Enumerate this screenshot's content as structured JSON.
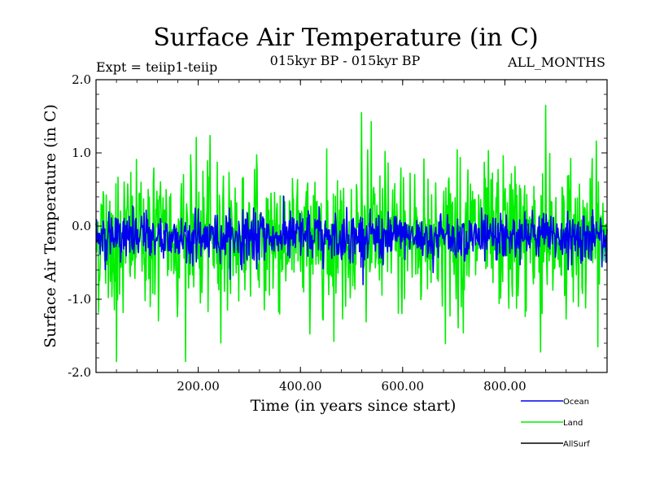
{
  "chart_data": {
    "type": "line",
    "title": "Surface Air Temperature (in C)",
    "subtitle": "015kyr BP - 015kyr BP",
    "top_left_label": "Expt = teiip1-teiip",
    "top_right_label": "ALL_MONTHS",
    "xlabel": "Time (in years since start)",
    "ylabel": "Surface Air Temperature (in C)",
    "xlim": [
      0,
      1000
    ],
    "ylim": [
      -2.0,
      2.0
    ],
    "x_ticks": [
      200,
      400,
      600,
      800
    ],
    "x_tick_labels": [
      "200.00",
      "400.00",
      "600.00",
      "800.00"
    ],
    "y_ticks": [
      2.0,
      1.0,
      0.0,
      -1.0,
      -2.0
    ],
    "y_tick_labels": [
      "2.0",
      "1.0",
      "0.0",
      "-1.0",
      "-2.0"
    ],
    "grid": false,
    "legend_position": "bottom-right",
    "series": [
      {
        "name": "Land",
        "color": "#00ee00",
        "summary": {
          "n_points": 1000,
          "mean": -0.15,
          "min": -1.85,
          "max": 1.65,
          "notable_peaks": [
            [
              40,
              -1.85
            ],
            [
              520,
              1.55
            ],
            [
              880,
              1.65
            ],
            [
              870,
              -1.72
            ]
          ]
        }
      },
      {
        "name": "Ocean",
        "color": "#0000ee",
        "summary": {
          "n_points": 1000,
          "mean": -0.15,
          "min": -0.8,
          "max": 0.55
        }
      },
      {
        "name": "AllSurf",
        "color": "#000000",
        "summary": {}
      }
    ]
  }
}
